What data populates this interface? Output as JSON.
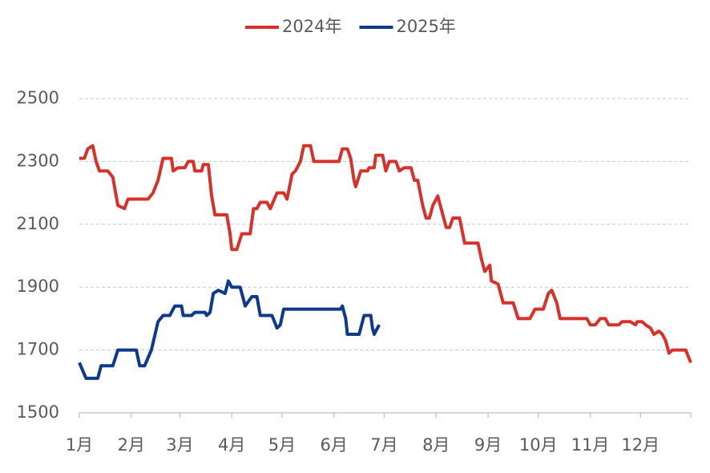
{
  "chart_data": {
    "type": "line",
    "series": [
      {
        "name": "2024年",
        "color": "#d6322a",
        "x": [
          1,
          4,
          6,
          9,
          11,
          13,
          18,
          21,
          24,
          28,
          30,
          42,
          45,
          48,
          51,
          56,
          57,
          60,
          64,
          66,
          69,
          70,
          74,
          75,
          78,
          80,
          82,
          89,
          91,
          92,
          95,
          98,
          103,
          105,
          107,
          109,
          113,
          115,
          119,
          123,
          125,
          128,
          130,
          133,
          135,
          139,
          141,
          156,
          158,
          161,
          163,
          165,
          166,
          169,
          173,
          174,
          177,
          178,
          182,
          184,
          186,
          190,
          192,
          195,
          199,
          201,
          203,
          206,
          208,
          210,
          212,
          215,
          217,
          220,
          222,
          224,
          228,
          231,
          239,
          241,
          243,
          246,
          247,
          251,
          254,
          256,
          260,
          263,
          270,
          273,
          278,
          281,
          283,
          286,
          288,
          304,
          306,
          309,
          312,
          315,
          317,
          323,
          325,
          330,
          333,
          334,
          337,
          339,
          342,
          344,
          347,
          349,
          351,
          353,
          355,
          363,
          366
        ],
        "values": [
          2310,
          2310,
          2340,
          2350,
          2300,
          2270,
          2270,
          2250,
          2160,
          2150,
          2180,
          2180,
          2200,
          2240,
          2310,
          2310,
          2270,
          2280,
          2280,
          2300,
          2300,
          2270,
          2270,
          2290,
          2290,
          2190,
          2130,
          2130,
          2070,
          2020,
          2020,
          2070,
          2070,
          2150,
          2150,
          2170,
          2170,
          2150,
          2200,
          2200,
          2180,
          2260,
          2270,
          2300,
          2350,
          2350,
          2300,
          2300,
          2340,
          2340,
          2310,
          2240,
          2220,
          2270,
          2270,
          2280,
          2280,
          2320,
          2320,
          2270,
          2300,
          2300,
          2270,
          2280,
          2280,
          2240,
          2240,
          2160,
          2120,
          2120,
          2160,
          2190,
          2150,
          2090,
          2090,
          2120,
          2120,
          2040,
          2040,
          1990,
          1950,
          1970,
          1920,
          1910,
          1850,
          1850,
          1850,
          1800,
          1800,
          1830,
          1830,
          1880,
          1890,
          1850,
          1800,
          1800,
          1780,
          1780,
          1800,
          1800,
          1780,
          1780,
          1790,
          1790,
          1780,
          1790,
          1790,
          1780,
          1770,
          1750,
          1760,
          1750,
          1730,
          1690,
          1700,
          1700,
          1660
        ]
      },
      {
        "name": "2025年",
        "color": "#0d3a8c",
        "x": [
          1,
          5,
          12,
          14,
          21,
          24,
          35,
          37,
          40,
          44,
          48,
          51,
          55,
          58,
          62,
          63,
          68,
          70,
          76,
          77,
          79,
          81,
          84,
          88,
          90,
          92,
          97,
          100,
          104,
          107,
          109,
          116,
          119,
          121,
          123,
          157,
          158,
          160,
          161,
          168,
          171,
          175,
          176,
          177,
          180
        ],
        "values": [
          1660,
          1610,
          1610,
          1650,
          1650,
          1700,
          1700,
          1650,
          1650,
          1700,
          1790,
          1810,
          1810,
          1840,
          1840,
          1810,
          1810,
          1820,
          1820,
          1810,
          1820,
          1880,
          1890,
          1880,
          1920,
          1900,
          1900,
          1840,
          1870,
          1870,
          1810,
          1810,
          1770,
          1780,
          1830,
          1830,
          1840,
          1800,
          1750,
          1750,
          1810,
          1810,
          1770,
          1750,
          1780
        ]
      }
    ],
    "xlim": [
      1,
      366
    ],
    "xticks": [
      {
        "value": 1,
        "label": "1月"
      },
      {
        "value": 32,
        "label": "2月"
      },
      {
        "value": 61,
        "label": "3月"
      },
      {
        "value": 92,
        "label": "4月"
      },
      {
        "value": 122,
        "label": "5月"
      },
      {
        "value": 153,
        "label": "6月"
      },
      {
        "value": 183,
        "label": "7月"
      },
      {
        "value": 214,
        "label": "8月"
      },
      {
        "value": 245,
        "label": "9月"
      },
      {
        "value": 275,
        "label": "10月"
      },
      {
        "value": 306,
        "label": "11月"
      },
      {
        "value": 336,
        "label": "12月"
      }
    ],
    "ylim": [
      1500,
      2500
    ],
    "yticks": [
      1500,
      1700,
      1900,
      2100,
      2300,
      2500
    ],
    "grid": true,
    "legend": "top"
  }
}
